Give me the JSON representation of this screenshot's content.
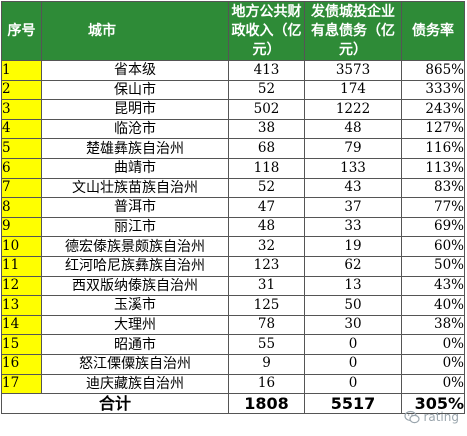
{
  "table": {
    "headers": {
      "index": "序号",
      "city": "城市",
      "revenue": "地方公共财政收入（亿元）",
      "interest": "发债城投企业有息债务（亿元）",
      "ratio": "债务率"
    },
    "rows": [
      {
        "index": "1",
        "city": "省本级",
        "revenue": "413",
        "interest": "3573",
        "ratio": "865%"
      },
      {
        "index": "2",
        "city": "保山市",
        "revenue": "52",
        "interest": "174",
        "ratio": "333%"
      },
      {
        "index": "3",
        "city": "昆明市",
        "revenue": "502",
        "interest": "1222",
        "ratio": "243%"
      },
      {
        "index": "4",
        "city": "临沧市",
        "revenue": "38",
        "interest": "48",
        "ratio": "127%"
      },
      {
        "index": "5",
        "city": "楚雄彝族自治州",
        "revenue": "68",
        "interest": "79",
        "ratio": "116%"
      },
      {
        "index": "6",
        "city": "曲靖市",
        "revenue": "118",
        "interest": "133",
        "ratio": "113%"
      },
      {
        "index": "7",
        "city": "文山壮族苗族自治州",
        "revenue": "52",
        "interest": "43",
        "ratio": "83%"
      },
      {
        "index": "8",
        "city": "普洱市",
        "revenue": "47",
        "interest": "37",
        "ratio": "77%"
      },
      {
        "index": "9",
        "city": "丽江市",
        "revenue": "48",
        "interest": "33",
        "ratio": "69%"
      },
      {
        "index": "10",
        "city": "德宏傣族景颇族自治州",
        "revenue": "32",
        "interest": "19",
        "ratio": "60%"
      },
      {
        "index": "11",
        "city": "红河哈尼族彝族自治州",
        "revenue": "123",
        "interest": "62",
        "ratio": "50%"
      },
      {
        "index": "12",
        "city": "西双版纳傣族自治州",
        "revenue": "31",
        "interest": "13",
        "ratio": "43%"
      },
      {
        "index": "13",
        "city": "玉溪市",
        "revenue": "125",
        "interest": "50",
        "ratio": "40%"
      },
      {
        "index": "14",
        "city": "大理州",
        "revenue": "78",
        "interest": "30",
        "ratio": "38%"
      },
      {
        "index": "15",
        "city": "昭通市",
        "revenue": "55",
        "interest": "0",
        "ratio": "0%"
      },
      {
        "index": "16",
        "city": "怒江傈僳族自治州",
        "revenue": "9",
        "interest": "0",
        "ratio": "0%"
      },
      {
        "index": "17",
        "city": "迪庆藏族自治州",
        "revenue": "16",
        "interest": "0",
        "ratio": "0%"
      }
    ],
    "total": {
      "label": "合计",
      "revenue": "1808",
      "interest": "5517",
      "ratio": "305%"
    }
  },
  "watermark": {
    "text": "rating",
    "icon": "wechat-icon"
  },
  "colors": {
    "header_bg": "#2e8b37",
    "index_bg": "#ffff00"
  }
}
